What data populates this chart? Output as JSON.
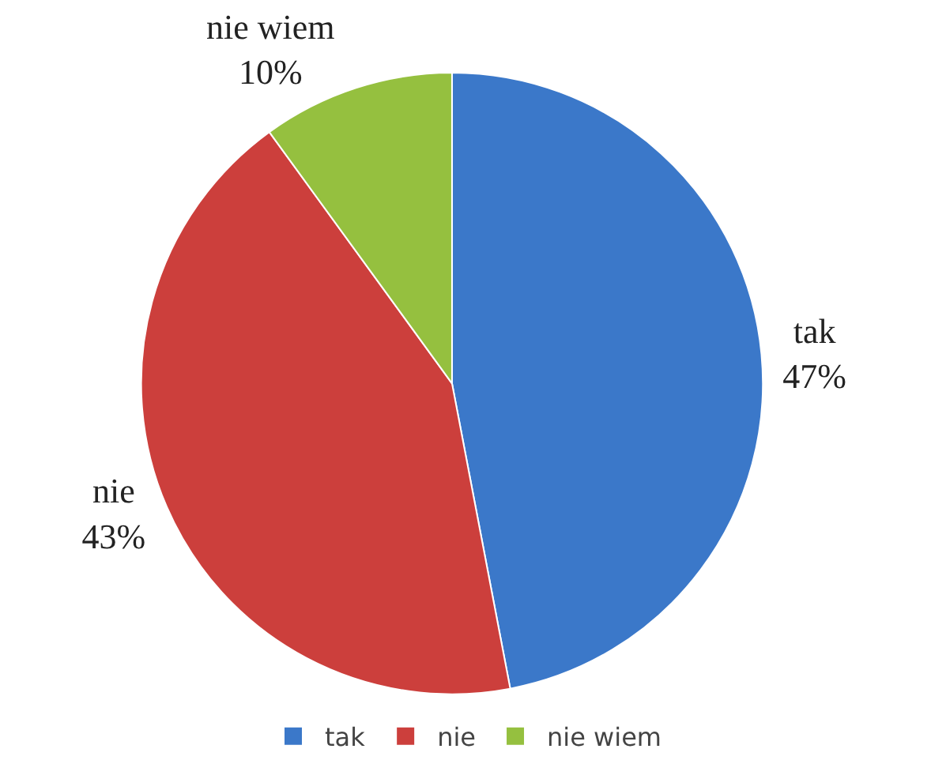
{
  "chart_data": {
    "type": "pie",
    "categories": [
      "tak",
      "nie",
      "nie wiem"
    ],
    "values": [
      47,
      43,
      10
    ],
    "colors": [
      "#3b78c9",
      "#cc3f3c",
      "#95c03f"
    ],
    "value_labels": [
      "47%",
      "43%",
      "10%"
    ],
    "legend": "bottom"
  }
}
